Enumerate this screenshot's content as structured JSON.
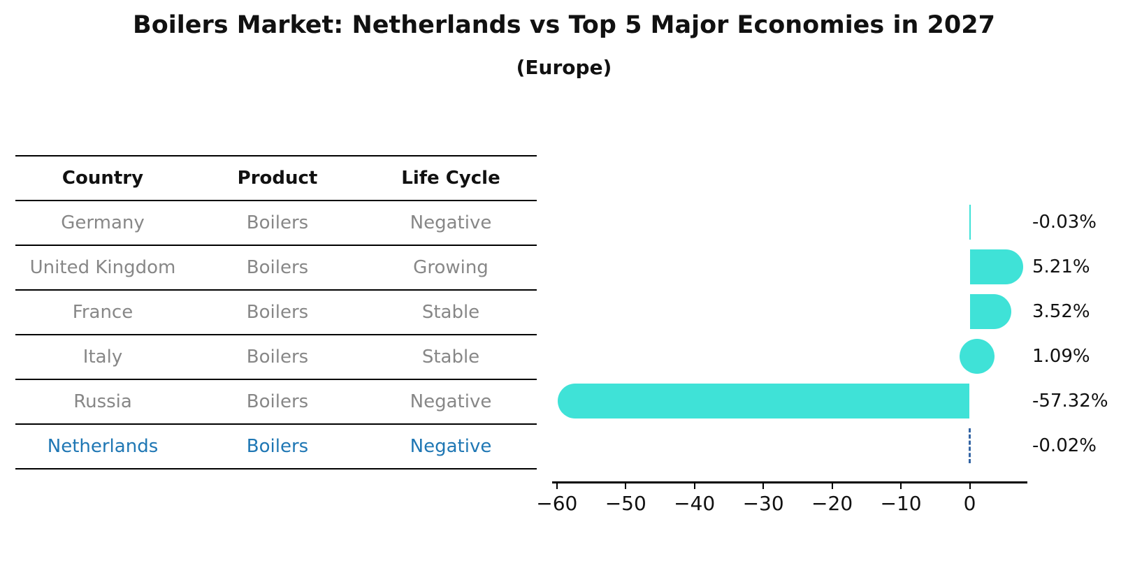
{
  "title": "Boilers Market: Netherlands vs Top 5 Major Economies in 2027",
  "subtitle": "(Europe)",
  "table": {
    "headers": [
      "Country",
      "Product",
      "Life Cycle"
    ],
    "rows": [
      {
        "country": "Germany",
        "product": "Boilers",
        "life_cycle": "Negative",
        "highlighted": false
      },
      {
        "country": "United Kingdom",
        "product": "Boilers",
        "life_cycle": "Growing",
        "highlighted": false
      },
      {
        "country": "France",
        "product": "Boilers",
        "life_cycle": "Stable",
        "highlighted": false
      },
      {
        "country": "Italy",
        "product": "Boilers",
        "life_cycle": "Stable",
        "highlighted": false
      },
      {
        "country": "Russia",
        "product": "Boilers",
        "life_cycle": "Negative",
        "highlighted": false
      },
      {
        "country": "Netherlands",
        "product": "Boilers",
        "life_cycle": "Negative",
        "highlighted": true
      }
    ]
  },
  "chart_data": {
    "type": "bar",
    "orientation": "horizontal",
    "title": "Boilers Market: Netherlands vs Top 5 Major Economies in 2027 (Europe)",
    "categories": [
      "Germany",
      "United Kingdom",
      "France",
      "Italy",
      "Russia",
      "Netherlands"
    ],
    "values": [
      -0.03,
      5.21,
      3.52,
      1.09,
      -57.32,
      -0.02
    ],
    "value_labels": [
      "-0.03%",
      "5.21%",
      "3.52%",
      "1.09%",
      "-57.32%",
      "-0.02%"
    ],
    "xlabel": "",
    "ylabel": "",
    "xticks": [
      -60,
      -50,
      -40,
      -30,
      -20,
      -10,
      0
    ],
    "xtick_labels": [
      "−60",
      "−50",
      "−40",
      "−30",
      "−20",
      "−10",
      "0"
    ],
    "xlim": [
      -62.6,
      8.4
    ],
    "grid": false,
    "legend": false,
    "highlight_category": "Netherlands",
    "highlight_style": "dashed-line-at-zero"
  },
  "colors": {
    "bar": "#3FE2D7",
    "highlight_text": "#1f77b4",
    "highlight_line": "#3465a4",
    "table_text": "#878787",
    "header_text": "#111111",
    "axis": "#000000"
  }
}
